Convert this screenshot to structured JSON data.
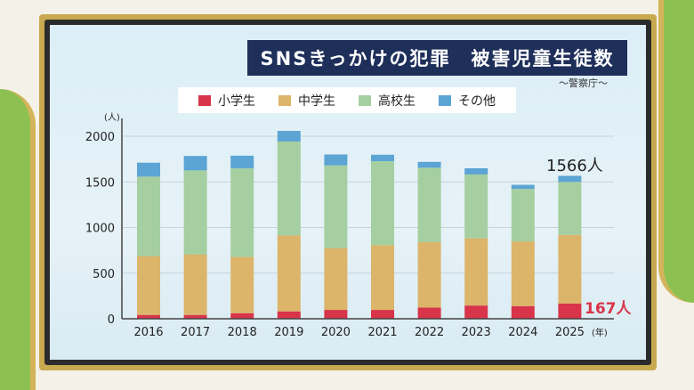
{
  "title": "SNSきっかけの犯罪　被害児童生徒数",
  "source": "〜警察庁〜",
  "chart_data": {
    "type": "bar",
    "stacked": true,
    "title": "SNSきっかけの犯罪　被害児童生徒数",
    "ylabel": "(人)",
    "xlabel": "(年)",
    "ylim": [
      0,
      2000
    ],
    "yticks": [
      "0",
      "500",
      "1000",
      "1500",
      "2000"
    ],
    "categories": [
      "2016",
      "2017",
      "2018",
      "2019",
      "2020",
      "2021",
      "2022",
      "2023",
      "2024",
      "2025"
    ],
    "series": [
      {
        "name": "小学生",
        "color": "#d8344a",
        "values": [
          42,
          42,
          61,
          81,
          97,
          97,
          123,
          145,
          139,
          167
        ]
      },
      {
        "name": "中学生",
        "color": "#dcb46a",
        "values": [
          645,
          661,
          616,
          832,
          677,
          709,
          716,
          736,
          709,
          752
        ]
      },
      {
        "name": "高校生",
        "color": "#a5cfa0",
        "values": [
          871,
          923,
          971,
          1029,
          907,
          920,
          816,
          700,
          575,
          581
        ]
      },
      {
        "name": "その他",
        "color": "#5ba4d4",
        "values": [
          152,
          158,
          139,
          116,
          119,
          71,
          64,
          68,
          45,
          66
        ]
      }
    ],
    "annotations": [
      {
        "text": "1566人",
        "category": "2025"
      },
      {
        "text": "167人",
        "category": "2025"
      }
    ],
    "grid": true,
    "legend": "top"
  }
}
